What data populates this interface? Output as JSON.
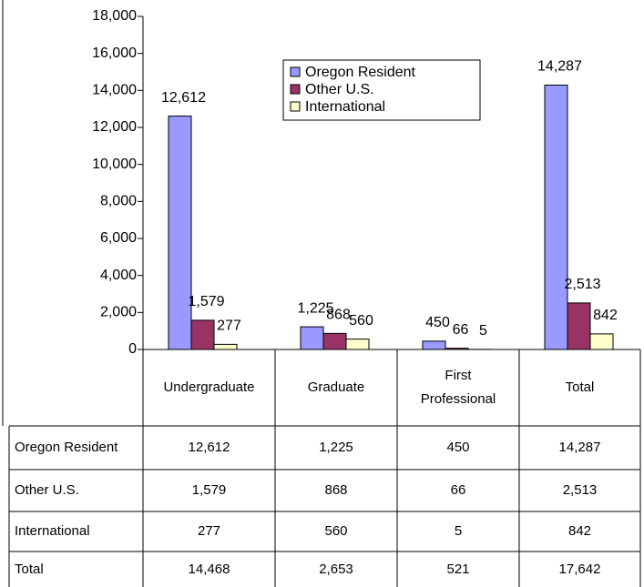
{
  "chart_data": {
    "type": "bar",
    "categories": [
      "Undergraduate",
      "Graduate",
      "First Professional",
      "Total"
    ],
    "series": [
      {
        "name": "Oregon Resident",
        "color": "#9999ff",
        "values": [
          12612,
          1225,
          450,
          14287
        ],
        "value_labels": [
          "12,612",
          "1,225",
          "450",
          "14,287"
        ]
      },
      {
        "name": "Other U.S.",
        "color": "#993366",
        "values": [
          1579,
          868,
          66,
          2513
        ],
        "value_labels": [
          "1,579",
          "868",
          "66",
          "2,513"
        ]
      },
      {
        "name": "International",
        "color": "#ffffcc",
        "values": [
          277,
          560,
          5,
          842
        ],
        "value_labels": [
          "277",
          "560",
          "5",
          "842"
        ]
      }
    ],
    "ylim": [
      0,
      18000
    ],
    "yticks": [
      0,
      {
        "value": 2000,
        "label": "2,000"
      },
      {
        "value": 4000,
        "label": "4,000"
      },
      {
        "value": 6000,
        "label": "6,000"
      },
      {
        "value": 8000,
        "label": "8,000"
      },
      {
        "value": 10000,
        "label": "10,000"
      },
      {
        "value": 12000,
        "label": "12,000"
      },
      {
        "value": 14000,
        "label": "14,000"
      },
      {
        "value": 16000,
        "label": "16,000"
      },
      {
        "value": 18000,
        "label": "18,000"
      }
    ],
    "grid": false,
    "data_table": {
      "rows": [
        [
          "Oregon Resident",
          "12,612",
          "1,225",
          "450",
          "14,287"
        ],
        [
          "Other U.S.",
          "1,579",
          "868",
          "66",
          "2,513"
        ],
        [
          "International",
          "277",
          "560",
          "5",
          "842"
        ],
        [
          "Total",
          "14,468",
          "2,653",
          "521",
          "17,642"
        ]
      ]
    }
  }
}
